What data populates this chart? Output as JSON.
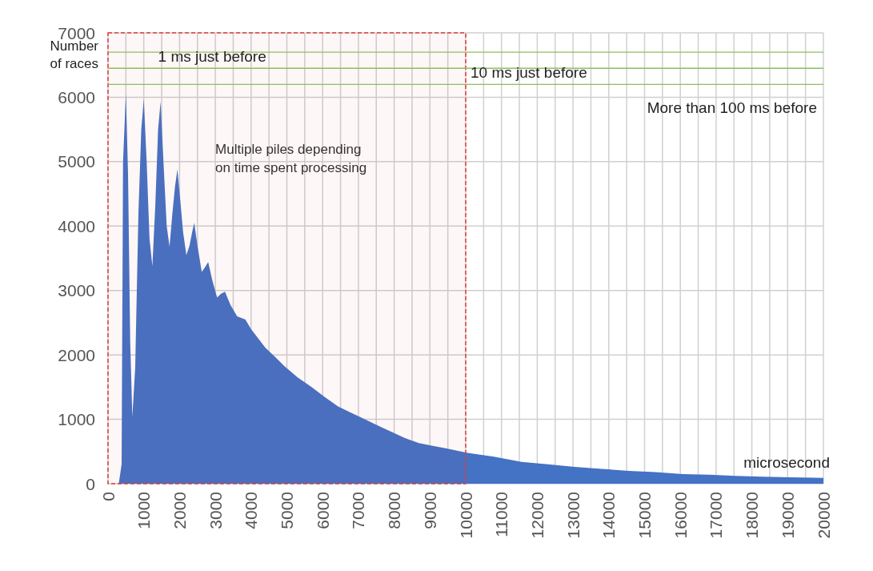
{
  "chart_data": {
    "type": "area",
    "ylabel": "Number of races",
    "xlabel": "microsecond",
    "color": "#4472c4",
    "grid": true,
    "x": [
      300,
      380,
      420,
      500,
      560,
      620,
      680,
      760,
      850,
      930,
      1000,
      1080,
      1160,
      1240,
      1320,
      1400,
      1470,
      1550,
      1640,
      1720,
      1800,
      1870,
      1940,
      2020,
      2100,
      2190,
      2280,
      2350,
      2410,
      2500,
      2620,
      2700,
      2800,
      2920,
      3050,
      3160,
      3270,
      3420,
      3610,
      3840,
      4000,
      4150,
      4400,
      4650,
      4920,
      5300,
      5690,
      6050,
      6430,
      6800,
      7180,
      7550,
      7950,
      8300,
      8690,
      9050,
      9440,
      10050,
      10790,
      11560,
      12300,
      13050,
      13800,
      14560,
      15300,
      16070,
      16800,
      17560,
      18300,
      19070,
      20000
    ],
    "values": [
      0,
      300,
      5000,
      6060,
      4800,
      2200,
      1040,
      1800,
      4200,
      5500,
      5970,
      5000,
      3800,
      3380,
      4300,
      5500,
      5930,
      5000,
      4000,
      3680,
      4200,
      4600,
      4880,
      4400,
      3900,
      3550,
      3700,
      3900,
      4050,
      3700,
      3290,
      3350,
      3440,
      3150,
      2890,
      2950,
      2980,
      2780,
      2600,
      2550,
      2400,
      2290,
      2110,
      1980,
      1830,
      1650,
      1500,
      1350,
      1200,
      1100,
      1000,
      900,
      800,
      710,
      630,
      590,
      550,
      480,
      420,
      340,
      300,
      260,
      230,
      200,
      180,
      150,
      140,
      120,
      110,
      100,
      90
    ],
    "xlim": [
      0,
      20000
    ],
    "ylim": [
      0,
      7000
    ],
    "xticks": [
      0,
      {
        "value": 500,
        "label": null
      },
      1000,
      {
        "value": 1500,
        "label": null
      },
      2000,
      {
        "value": 2500,
        "label": null
      },
      3000,
      {
        "value": 3500,
        "label": null
      },
      4000,
      {
        "value": 4500,
        "label": null
      },
      5000,
      {
        "value": 5500,
        "label": null
      },
      6000,
      {
        "value": 6500,
        "label": null
      },
      7000,
      {
        "value": 7500,
        "label": null
      },
      8000,
      {
        "value": 8500,
        "label": null
      },
      9000,
      {
        "value": 9500,
        "label": null
      },
      10000,
      {
        "value": 10500,
        "label": null
      },
      11000,
      {
        "value": 11500,
        "label": null
      },
      12000,
      {
        "value": 12500,
        "label": null
      },
      13000,
      {
        "value": 13500,
        "label": null
      },
      14000,
      {
        "value": 14500,
        "label": null
      },
      15000,
      {
        "value": 15500,
        "label": null
      },
      16000,
      {
        "value": 16500,
        "label": null
      },
      17000,
      {
        "value": 17500,
        "label": null
      },
      18000,
      {
        "value": 18500,
        "label": null
      },
      19000,
      {
        "value": 19500,
        "label": null
      },
      20000
    ],
    "yticks": [
      0,
      1000,
      2000,
      3000,
      4000,
      5000,
      6000,
      7000
    ],
    "bands": [
      {
        "axis": "x",
        "from": 0,
        "to": 10000,
        "color": "#e03c3c"
      }
    ],
    "ref_lines": [
      {
        "axis": "y",
        "value": 6700,
        "label": "1 ms just before",
        "color": "#8cbf5a"
      },
      {
        "axis": "y",
        "value": 6450,
        "label": "10 ms just before",
        "color": "#8cbf5a"
      },
      {
        "axis": "y",
        "value": 6200,
        "label": "More than 100 ms before",
        "color": "#8cbf5a"
      }
    ],
    "annotations": [
      "Multiple piles depending on time spent processing"
    ]
  }
}
